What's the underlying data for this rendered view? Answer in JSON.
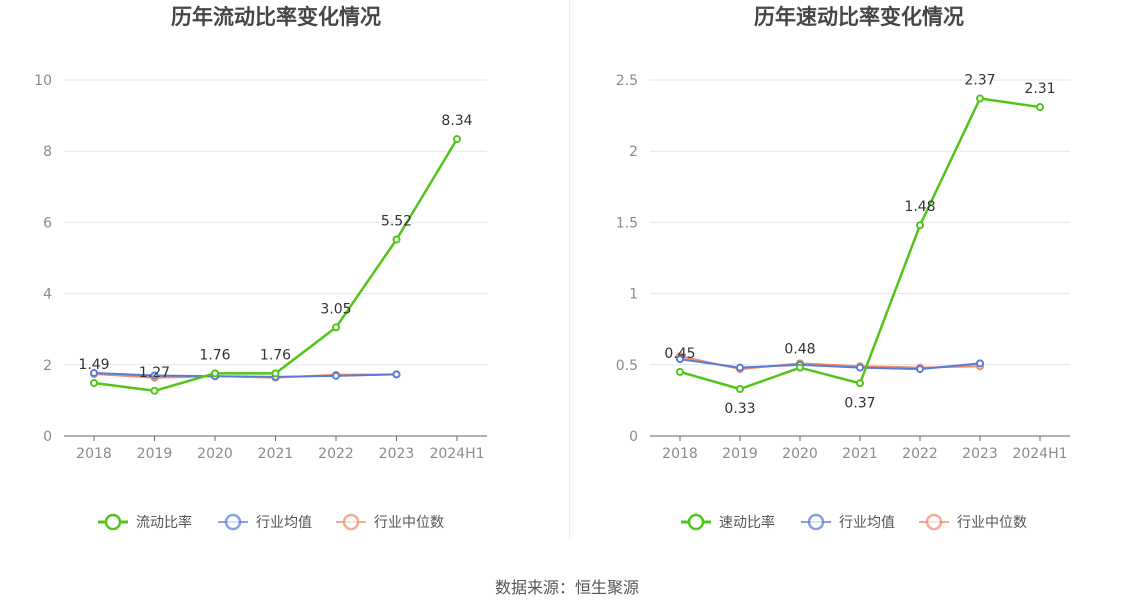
{
  "source_label": "数据来源：恒生聚源",
  "chart_data": [
    {
      "type": "line",
      "title": "历年流动比率变化情况",
      "categories": [
        "2018",
        "2019",
        "2020",
        "2021",
        "2022",
        "2023",
        "2024H1"
      ],
      "ylim": [
        0,
        10
      ],
      "yticks": [
        0,
        2,
        4,
        6,
        8,
        10
      ],
      "ytick_labels": [
        "0",
        "2",
        "4",
        "6",
        "8",
        "10"
      ],
      "grid": true,
      "legend_position": "bottom-center",
      "series": [
        {
          "name": "流动比率",
          "color": "#52c41a",
          "values": [
            1.49,
            1.27,
            1.76,
            1.76,
            3.05,
            5.52,
            8.34
          ],
          "labels": [
            "1.49",
            "1.27",
            "1.76",
            "1.76",
            "3.05",
            "5.52",
            "8.34"
          ]
        },
        {
          "name": "行业均值",
          "color": "#5b7bd5",
          "values": [
            1.77,
            1.7,
            1.68,
            1.66,
            1.69,
            1.73,
            null
          ]
        },
        {
          "name": "行业中位数",
          "color": "#f08a6b",
          "values": [
            1.74,
            1.64,
            1.68,
            1.64,
            1.72,
            1.73,
            null
          ]
        }
      ]
    },
    {
      "type": "line",
      "title": "历年速动比率变化情况",
      "categories": [
        "2018",
        "2019",
        "2020",
        "2021",
        "2022",
        "2023",
        "2024H1"
      ],
      "ylim": [
        0,
        2.5
      ],
      "yticks": [
        0,
        0.5,
        1,
        1.5,
        2,
        2.5
      ],
      "ytick_labels": [
        "0",
        "0.5",
        "1",
        "1.5",
        "2",
        "2.5"
      ],
      "grid": true,
      "legend_position": "bottom-center",
      "series": [
        {
          "name": "速动比率",
          "color": "#52c41a",
          "values": [
            0.45,
            0.33,
            0.48,
            0.37,
            1.48,
            2.37,
            2.31
          ],
          "labels": [
            "0.45",
            "0.33",
            "0.48",
            "0.37",
            "1.48",
            "2.37",
            "2.31"
          ]
        },
        {
          "name": "行业均值",
          "color": "#5b7bd5",
          "values": [
            0.54,
            0.48,
            0.5,
            0.48,
            0.47,
            0.51,
            null
          ]
        },
        {
          "name": "行业中位数",
          "color": "#f08a6b",
          "values": [
            0.56,
            0.47,
            0.51,
            0.49,
            0.48,
            0.49,
            null
          ]
        }
      ]
    }
  ]
}
